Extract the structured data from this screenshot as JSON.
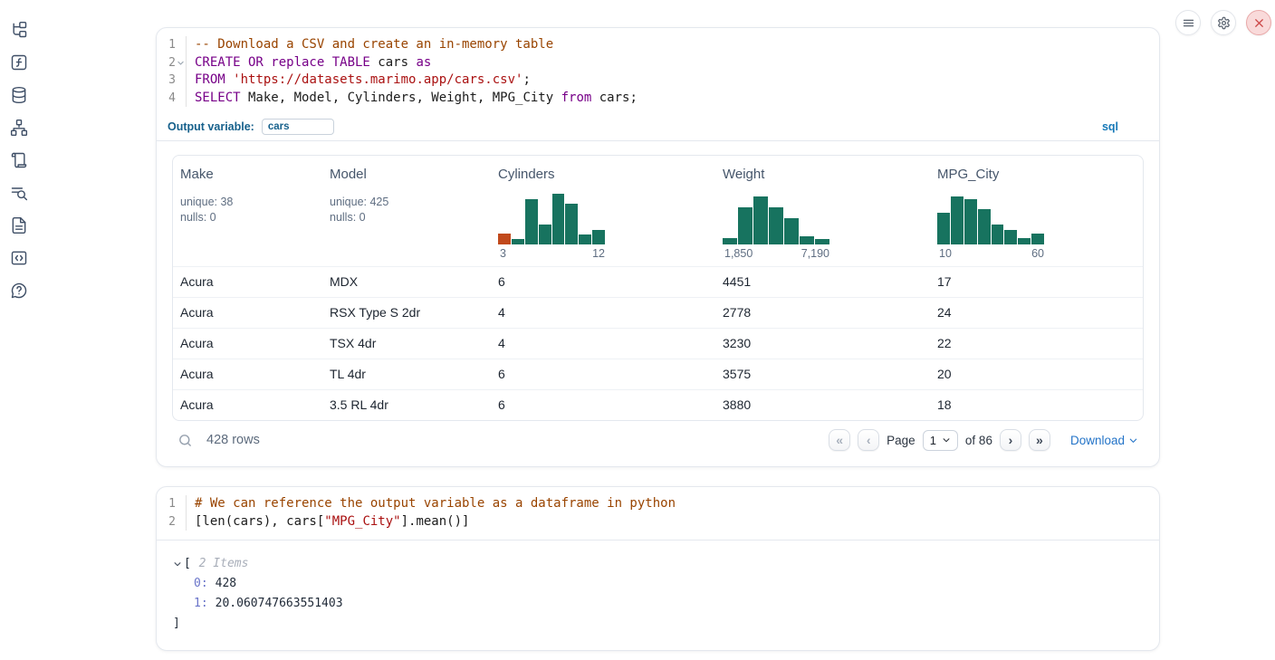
{
  "sidebar": {
    "items": [
      {
        "name": "file-explorer"
      },
      {
        "name": "variables"
      },
      {
        "name": "data-sources"
      },
      {
        "name": "dependency-graph"
      },
      {
        "name": "logs"
      },
      {
        "name": "table-of-contents"
      },
      {
        "name": "documentation"
      },
      {
        "name": "snippets"
      },
      {
        "name": "help"
      }
    ]
  },
  "topbar": {
    "icons": [
      "menu-icon",
      "settings-icon",
      "shutdown-icon"
    ]
  },
  "sql_cell": {
    "code": [
      {
        "num": "1",
        "tokens": [
          {
            "c": "com",
            "t": "-- Download a CSV and create an in-memory table"
          }
        ]
      },
      {
        "num": "2",
        "fold": true,
        "tokens": [
          {
            "c": "kw",
            "t": "CREATE OR replace TABLE"
          },
          {
            "c": "pl",
            "t": " cars "
          },
          {
            "c": "kw",
            "t": "as"
          }
        ]
      },
      {
        "num": "3",
        "tokens": [
          {
            "c": "kw",
            "t": "FROM"
          },
          {
            "c": "pl",
            "t": " "
          },
          {
            "c": "str",
            "t": "'https://datasets.marimo.app/cars.csv'"
          },
          {
            "c": "pl",
            "t": ";"
          }
        ]
      },
      {
        "num": "4",
        "tokens": [
          {
            "c": "kw",
            "t": "SELECT"
          },
          {
            "c": "pl",
            "t": " Make, Model, Cylinders, Weight, MPG_City "
          },
          {
            "c": "kw",
            "t": "from"
          },
          {
            "c": "pl",
            "t": " cars;"
          }
        ]
      }
    ],
    "output_variable": {
      "label": "Output variable:",
      "value": "cars"
    },
    "language_badge": "sql"
  },
  "table": {
    "columns": [
      {
        "name": "Make",
        "stats": [
          "unique: 38",
          "nulls: 0"
        ]
      },
      {
        "name": "Model",
        "stats": [
          "unique: 425",
          "nulls: 0"
        ]
      },
      {
        "name": "Cylinders",
        "hist": {
          "min_label": "3",
          "max_label": "12",
          "heights": [
            22,
            10,
            90,
            40,
            100,
            80,
            20,
            28
          ],
          "colors": [
            "#c1491c",
            "#17735f",
            "#17735f",
            "#17735f",
            "#17735f",
            "#17735f",
            "#17735f",
            "#17735f"
          ]
        }
      },
      {
        "name": "Weight",
        "hist": {
          "min_label": "1,850",
          "max_label": "7,190",
          "heights": [
            12,
            73,
            94,
            73,
            51,
            16,
            10
          ],
          "colors": [
            "#17735f",
            "#17735f",
            "#17735f",
            "#17735f",
            "#17735f",
            "#17735f",
            "#17735f"
          ]
        }
      },
      {
        "name": "MPG_City",
        "hist": {
          "min_label": "10",
          "max_label": "60",
          "heights": [
            62,
            95,
            90,
            70,
            40,
            28,
            12,
            22
          ],
          "colors": [
            "#17735f",
            "#17735f",
            "#17735f",
            "#17735f",
            "#17735f",
            "#17735f",
            "#17735f",
            "#17735f"
          ]
        }
      }
    ],
    "rows": [
      [
        "Acura",
        "MDX",
        "6",
        "4451",
        "17"
      ],
      [
        "Acura",
        "RSX Type S 2dr",
        "4",
        "2778",
        "24"
      ],
      [
        "Acura",
        "TSX 4dr",
        "4",
        "3230",
        "22"
      ],
      [
        "Acura",
        "TL 4dr",
        "6",
        "3575",
        "20"
      ],
      [
        "Acura",
        "3.5 RL 4dr",
        "6",
        "3880",
        "18"
      ]
    ],
    "footer": {
      "row_count": "428 rows",
      "page_label": "Page",
      "page_value": "1",
      "total_label": "of 86",
      "download_label": "Download",
      "pagination": [
        {
          "name": "first-page",
          "glyph": "«"
        },
        {
          "name": "prev-page",
          "glyph": "‹"
        },
        {
          "name": "next-page",
          "glyph": "›"
        },
        {
          "name": "last-page",
          "glyph": "»"
        }
      ]
    }
  },
  "python_cell": {
    "code": [
      {
        "num": "1",
        "tokens": [
          {
            "c": "com",
            "t": "# We can reference the output variable as a dataframe in python"
          }
        ]
      },
      {
        "num": "2",
        "tokens": [
          {
            "c": "pl",
            "t": "[len(cars), cars["
          },
          {
            "c": "str",
            "t": "\"MPG_City\""
          },
          {
            "c": "pl",
            "t": "].mean()]"
          }
        ]
      }
    ],
    "output_tree": {
      "open_bracket": "[",
      "items_label": "2 Items",
      "items": [
        {
          "key": "0:",
          "value": "428"
        },
        {
          "key": "1:",
          "value": "20.060747663551403"
        }
      ],
      "close_bracket": "]"
    }
  },
  "colors": {
    "histogram_bar": "#17735f",
    "histogram_accent": "#c1491c",
    "accent_blue": "#2474c8",
    "keyword_purple": "#770088",
    "string_red": "#aa1111",
    "comment_brown": "#994400",
    "danger_red": "#cc4747"
  }
}
